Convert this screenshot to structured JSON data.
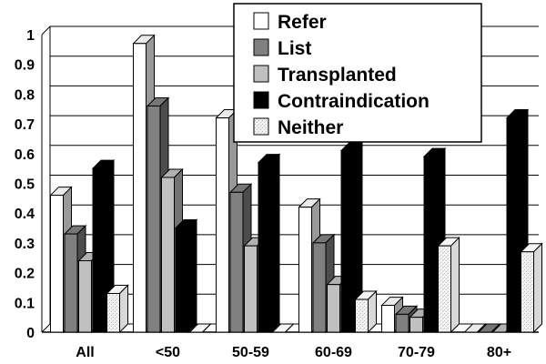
{
  "chart_data": {
    "type": "bar",
    "title": "",
    "xlabel": "",
    "ylabel": "",
    "ylim": [
      0,
      1
    ],
    "yticks": [
      "0",
      "0.1",
      "0.2",
      "0.3",
      "0.4",
      "0.5",
      "0.6",
      "0.7",
      "0.8",
      "0.9",
      "1"
    ],
    "grid": true,
    "legend_position": "top-right",
    "categories": [
      "All",
      "<50",
      "50-59",
      "60-69",
      "70-79",
      "80+"
    ],
    "series": [
      {
        "name": "Refer",
        "color": "#ffffff",
        "values": [
          0.46,
          0.97,
          0.72,
          0.42,
          0.09,
          0
        ]
      },
      {
        "name": "List",
        "color": "#808080",
        "values": [
          0.33,
          0.76,
          0.47,
          0.3,
          0.06,
          0
        ]
      },
      {
        "name": "Transplanted",
        "color": "#c0c0c0",
        "values": [
          0.24,
          0.52,
          0.29,
          0.16,
          0.05,
          0
        ]
      },
      {
        "name": "Contraindication",
        "color": "#000000",
        "values": [
          0.55,
          0.35,
          0.57,
          0.61,
          0.59,
          0.72
        ]
      },
      {
        "name": "Neither",
        "color": "#e8e8e8",
        "values": [
          0.13,
          0,
          0,
          0.11,
          0.29,
          0.27
        ]
      }
    ]
  }
}
